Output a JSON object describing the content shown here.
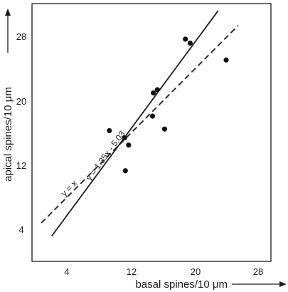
{
  "chart_data": {
    "type": "scatter",
    "xlabel": "basal spines/10 μm",
    "ylabel": "apical spines/10 μm",
    "xlim": [
      0,
      31
    ],
    "ylim": [
      0,
      31
    ],
    "x_ticks": [
      "4",
      "12",
      "20",
      "28"
    ],
    "y_ticks": [
      "4",
      "12",
      "20",
      "28"
    ],
    "grid": false,
    "points": [
      {
        "x": 13.2,
        "y": 16.2
      },
      {
        "x": 15.1,
        "y": 15.3
      },
      {
        "x": 15.6,
        "y": 14.4
      },
      {
        "x": 15.2,
        "y": 11.2
      },
      {
        "x": 18.6,
        "y": 18.0
      },
      {
        "x": 18.7,
        "y": 20.9
      },
      {
        "x": 19.2,
        "y": 21.3
      },
      {
        "x": 20.1,
        "y": 16.4
      },
      {
        "x": 22.7,
        "y": 27.6
      },
      {
        "x": 23.3,
        "y": 27.1
      },
      {
        "x": 27.8,
        "y": 25.0
      }
    ],
    "lines": [
      {
        "name": "y = x",
        "style": "dashed",
        "slope": 1,
        "intercept": 0,
        "x_range": [
          4.7,
          29.3
        ]
      },
      {
        "name": "y = 1.35x - 5.03",
        "style": "solid",
        "slope": 1.35,
        "intercept": -5.03,
        "x_range": [
          6.0,
          26.8
        ]
      }
    ]
  }
}
